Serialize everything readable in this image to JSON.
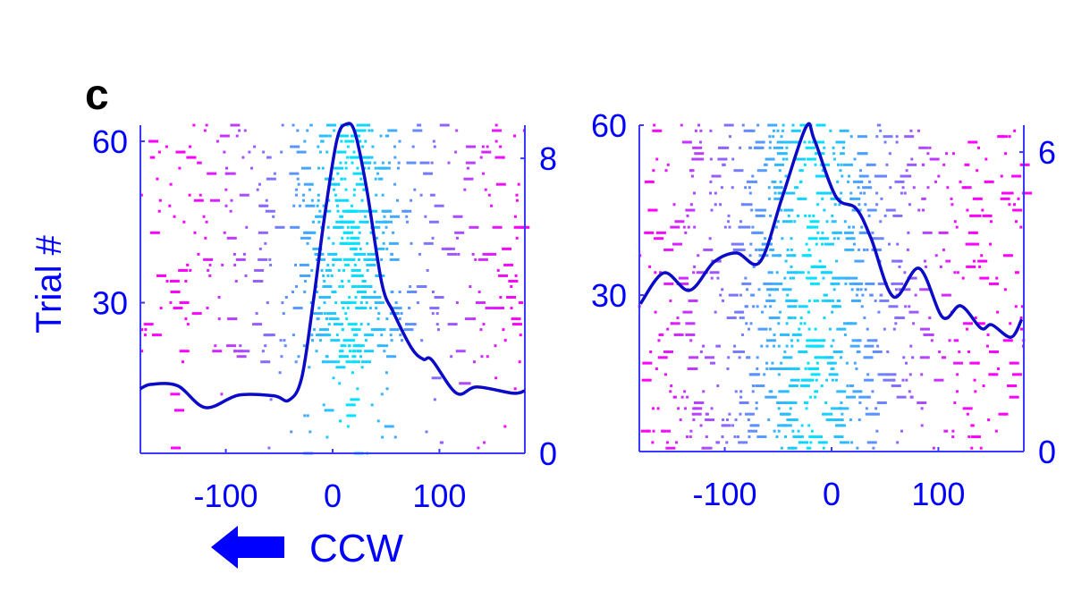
{
  "panel_label": "c",
  "annotation": {
    "arrow_direction": "left",
    "text": "CCW"
  },
  "colors": {
    "axis": "#3a3aff",
    "text": "#0000ff",
    "curve": "#0a0ac8",
    "raster_center": "#00e5ff",
    "raster_edge": "#ff00ff"
  },
  "chart_data": [
    {
      "type": "line",
      "overlay": "raster",
      "ylabel": "Trial #",
      "xlim": [
        -180,
        180
      ],
      "ylim_left": [
        2,
        63
      ],
      "ylim_right": [
        0,
        8.9
      ],
      "xticks": [
        -100,
        0,
        100
      ],
      "xtick_labels": [
        "-100",
        "0",
        "100"
      ],
      "yticks_left": [
        30,
        60
      ],
      "ytick_labels_left": [
        "30",
        "60"
      ],
      "yticks_right": [
        0,
        8
      ],
      "ytick_labels_right": [
        "0",
        "8"
      ],
      "grid": false,
      "series": [
        {
          "x": [
            -181,
            -170,
            -145,
            -119,
            -88,
            -55,
            -41,
            -29,
            -18,
            -8,
            4,
            13,
            21,
            32,
            46,
            57,
            74,
            85,
            93,
            116,
            135,
            169,
            181
          ],
          "y": [
            1.75,
            1.87,
            1.83,
            1.24,
            1.58,
            1.56,
            1.44,
            2.04,
            4.14,
            6.33,
            8.5,
            8.93,
            8.69,
            7.15,
            4.62,
            3.82,
            2.85,
            2.55,
            2.53,
            1.63,
            1.8,
            1.63,
            1.7
          ]
        }
      ]
    },
    {
      "type": "line",
      "overlay": "raster",
      "xlim": [
        -180,
        180
      ],
      "ylim_left": [
        2.4,
        60
      ],
      "ylim_right": [
        0,
        6.54
      ],
      "xticks": [
        -100,
        0,
        100
      ],
      "xtick_labels": [
        "-100",
        "0",
        "100"
      ],
      "yticks_left": [
        30,
        60
      ],
      "ytick_labels_left": [
        "30",
        "60"
      ],
      "yticks_right": [
        0,
        6
      ],
      "ytick_labels_right": [
        "0",
        "6"
      ],
      "grid": false,
      "series": [
        {
          "x": [
            -179,
            -157,
            -133,
            -110,
            -89,
            -67,
            -46,
            -24,
            -16,
            4,
            23,
            37,
            58,
            82,
            104,
            121,
            140,
            150,
            168,
            178
          ],
          "y": [
            2.96,
            3.58,
            3.23,
            3.8,
            3.98,
            3.8,
            5.11,
            6.5,
            6.24,
            5.11,
            4.87,
            4.27,
            3.1,
            3.67,
            2.69,
            2.92,
            2.47,
            2.54,
            2.29,
            2.65
          ]
        }
      ]
    }
  ]
}
